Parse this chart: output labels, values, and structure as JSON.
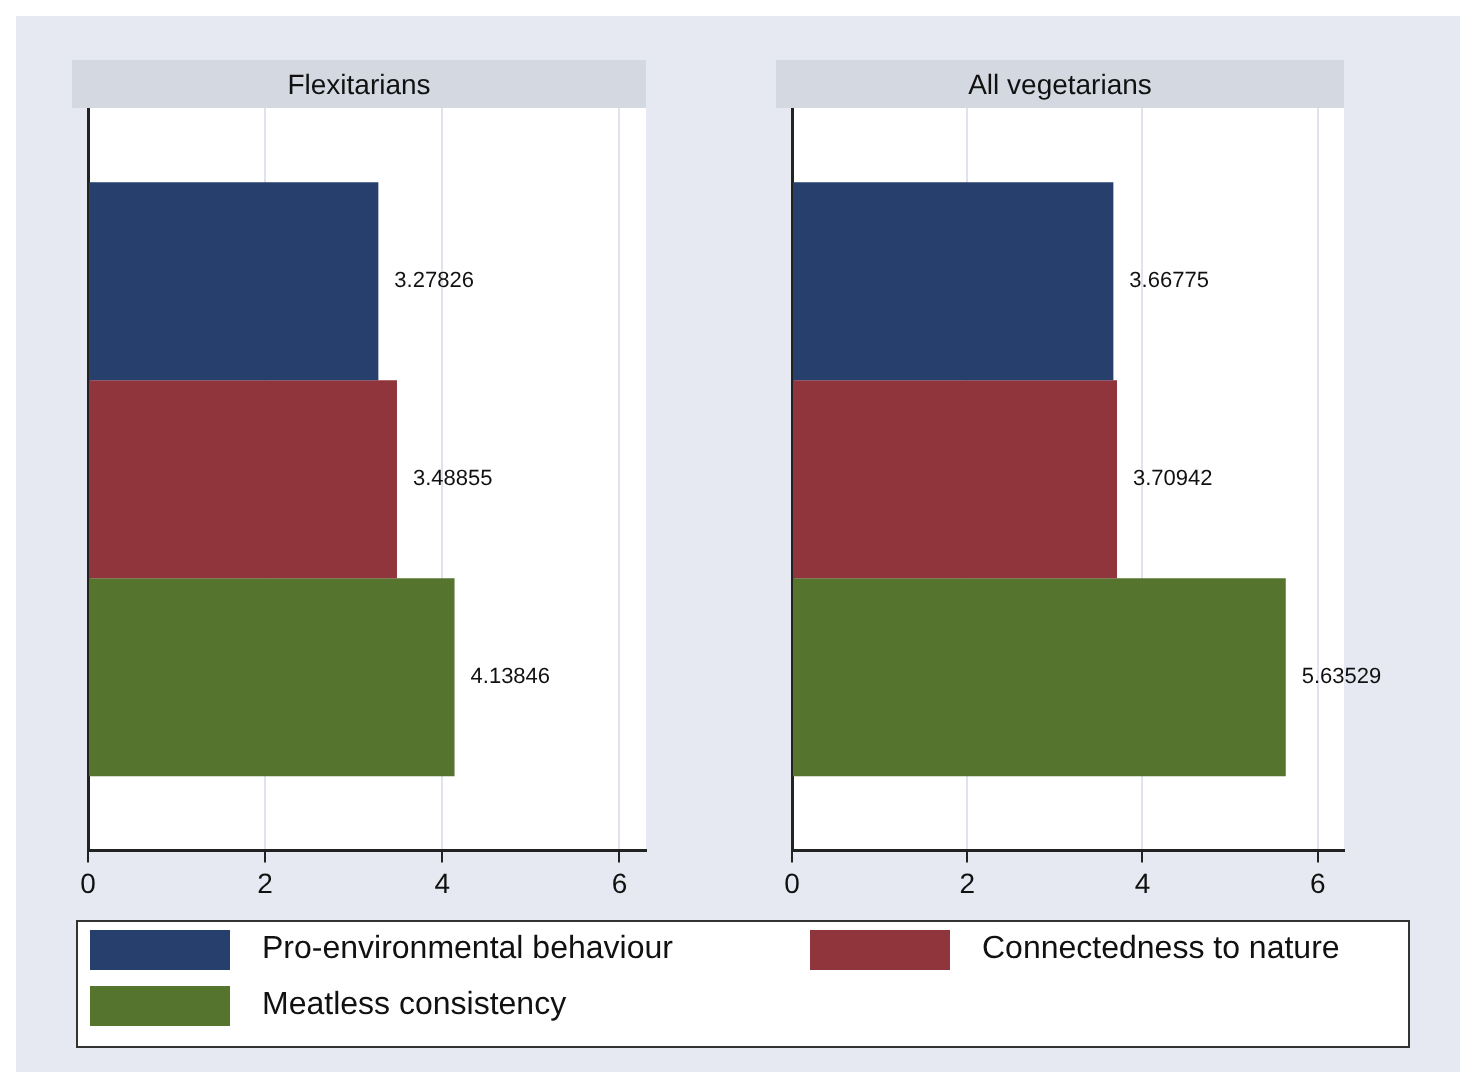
{
  "chart_data": [
    {
      "type": "bar",
      "title": "Flexitarians",
      "orientation": "horizontal",
      "categories": [
        null
      ],
      "data_labels": true,
      "grid": "x",
      "legend": "bottom",
      "xlim": [
        0,
        6.3
      ],
      "xticks": [
        0,
        2,
        4,
        6
      ],
      "series": [
        {
          "name": "Pro-environmental behaviour",
          "color": "#273f6d",
          "values": [
            3.27826
          ]
        },
        {
          "name": "Connectedness to nature",
          "color": "#90353b",
          "values": [
            3.48855
          ]
        },
        {
          "name": "Meatless consistency",
          "color": "#55752f",
          "values": [
            4.13846
          ]
        }
      ]
    },
    {
      "type": "bar",
      "title": "All vegetarians",
      "orientation": "horizontal",
      "categories": [
        null
      ],
      "data_labels": true,
      "grid": "x",
      "legend": "bottom",
      "xlim": [
        0,
        6.3
      ],
      "xticks": [
        0,
        2,
        4,
        6
      ],
      "series": [
        {
          "name": "Pro-environmental behaviour",
          "color": "#273f6d",
          "values": [
            3.66775
          ]
        },
        {
          "name": "Connectedness to nature",
          "color": "#90353b",
          "values": [
            3.70942
          ]
        },
        {
          "name": "Meatless consistency",
          "color": "#55752f",
          "values": [
            5.63529
          ]
        }
      ]
    }
  ]
}
